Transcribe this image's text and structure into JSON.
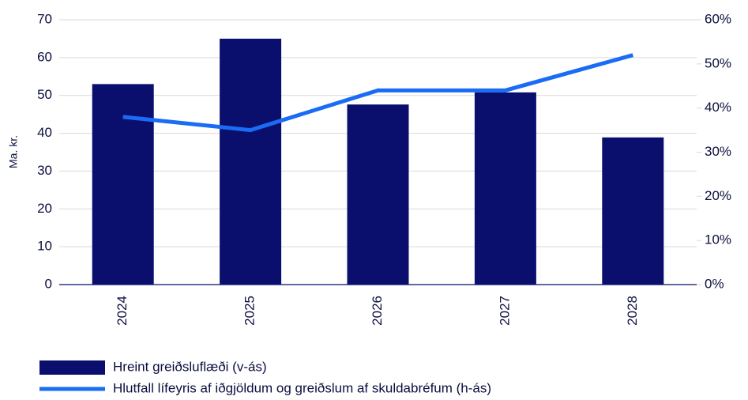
{
  "chart_data": {
    "type": "bar",
    "y_label": "Ma. kr.",
    "categories": [
      "2024",
      "2025",
      "2026",
      "2027",
      "2028"
    ],
    "series": [
      {
        "name": "Hreint greiðsluflæði (v-ás)",
        "type": "bar",
        "color": "#0a0f6e",
        "values": [
          53,
          65,
          47.6,
          50.8,
          38.9
        ]
      },
      {
        "name": "Hlutfall lífeyris af iðgjöldum og greiðslum af skuldabréfum (h-ás)",
        "type": "line",
        "axis": "y2",
        "color": "#1a6cf5",
        "values": [
          38,
          35,
          44,
          44,
          52
        ]
      }
    ],
    "ylim": [
      0,
      70
    ],
    "yticks": [
      0,
      10,
      20,
      30,
      40,
      50,
      60,
      70
    ],
    "y2lim": [
      0,
      60
    ],
    "y2ticks": [
      {
        "value": 0,
        "label": "0%"
      },
      {
        "value": 10,
        "label": "10%"
      },
      {
        "value": 20,
        "label": "20%"
      },
      {
        "value": 30,
        "label": "30%"
      },
      {
        "value": 40,
        "label": "40%"
      },
      {
        "value": 50,
        "label": "50%"
      },
      {
        "value": 60,
        "label": "60%"
      }
    ],
    "grid": true
  }
}
